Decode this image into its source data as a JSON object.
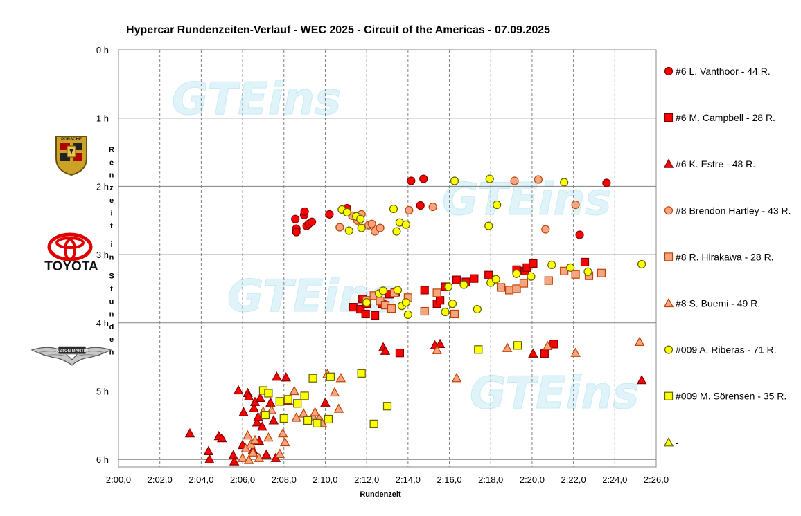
{
  "chart_data": {
    "type": "scatter",
    "title": "Hypercar Rundenzeiten-Verlauf - WEC 2025 - Circuit of the Americas - 07.09.2025",
    "xlabel": "Rundenzeit",
    "ylabel": "Renzeit in Stunden",
    "x_unit": "minutes",
    "xlim": [
      120,
      146
    ],
    "ylim": [
      0,
      6.1
    ],
    "y_reversed": true,
    "x_ticks": [
      "2:00,0",
      "2:02,0",
      "2:04,0",
      "2:06,0",
      "2:08,0",
      "2:10,0",
      "2:12,0",
      "2:14,0",
      "2:16,0",
      "2:18,0",
      "2:20,0",
      "2:22,0",
      "2:24,0",
      "2:26,0"
    ],
    "y_ticks": [
      "0 h",
      "1 h",
      "2 h",
      "3 h",
      "4 h",
      "5 h",
      "6 h"
    ],
    "grid": {
      "x": "dashed",
      "y": "solid"
    },
    "legend_position": "right",
    "watermark": "GTEins",
    "series": [
      {
        "name": "#6 L. Vanthoor - 44 R.",
        "marker": "circle",
        "fill": "#ff0000",
        "stroke": "#800000",
        "points": [
          [
            128.55,
            2.48
          ],
          [
            128.6,
            2.62
          ],
          [
            128.6,
            2.67
          ],
          [
            128.98,
            2.42
          ],
          [
            129.0,
            2.37
          ],
          [
            129.1,
            2.58
          ],
          [
            129.2,
            2.55
          ],
          [
            129.35,
            2.52
          ],
          [
            130.2,
            2.41
          ],
          [
            131.05,
            2.32
          ],
          [
            134.15,
            1.92
          ],
          [
            134.75,
            1.89
          ],
          [
            134.6,
            2.28
          ],
          [
            142.3,
            2.71
          ],
          [
            143.6,
            1.95
          ]
        ]
      },
      {
        "name": "#6 M. Campbell - 28 R.",
        "marker": "square",
        "fill": "#ff0000",
        "stroke": "#800000",
        "points": [
          [
            131.35,
            3.77
          ],
          [
            131.7,
            3.8
          ],
          [
            131.8,
            3.65
          ],
          [
            131.95,
            3.87
          ],
          [
            132.0,
            3.72
          ],
          [
            132.4,
            3.89
          ],
          [
            132.75,
            3.72
          ],
          [
            133.1,
            3.58
          ],
          [
            133.4,
            3.55
          ],
          [
            134.8,
            3.52
          ],
          [
            135.4,
            3.72
          ],
          [
            135.55,
            3.67
          ],
          [
            135.8,
            3.47
          ],
          [
            136.35,
            3.37
          ],
          [
            136.8,
            3.4
          ],
          [
            137.2,
            3.35
          ],
          [
            137.9,
            3.3
          ],
          [
            139.25,
            3.22
          ],
          [
            139.65,
            3.24
          ],
          [
            139.75,
            3.19
          ],
          [
            140.05,
            3.13
          ],
          [
            142.55,
            3.11
          ],
          [
            140.6,
            4.45
          ],
          [
            141.05,
            4.31
          ],
          [
            133.6,
            4.44
          ]
        ]
      },
      {
        "name": "#6 K. Estre - 48 R.",
        "marker": "triangle",
        "fill": "#ff0000",
        "stroke": "#800000",
        "points": [
          [
            123.45,
            5.62
          ],
          [
            124.35,
            5.88
          ],
          [
            124.4,
            6.0
          ],
          [
            124.85,
            5.66
          ],
          [
            125.0,
            5.69
          ],
          [
            125.55,
            5.94
          ],
          [
            125.6,
            6.03
          ],
          [
            125.8,
            4.99
          ],
          [
            126.0,
            5.79
          ],
          [
            126.05,
            5.31
          ],
          [
            126.25,
            5.03
          ],
          [
            126.3,
            5.08
          ],
          [
            126.5,
            5.86
          ],
          [
            126.55,
            5.25
          ],
          [
            126.6,
            5.16
          ],
          [
            126.7,
            5.46
          ],
          [
            126.75,
            5.38
          ],
          [
            126.8,
            5.73
          ],
          [
            126.85,
            5.1
          ],
          [
            126.95,
            5.52
          ],
          [
            127.15,
            5.93
          ],
          [
            127.35,
            5.17
          ],
          [
            127.5,
            5.43
          ],
          [
            127.6,
            5.98
          ],
          [
            127.65,
            4.79
          ],
          [
            128.1,
            4.8
          ],
          [
            128.2,
            5.14
          ],
          [
            130.0,
            5.17
          ],
          [
            132.8,
            4.36
          ],
          [
            132.9,
            4.41
          ],
          [
            135.3,
            4.33
          ],
          [
            135.55,
            4.31
          ],
          [
            140.05,
            4.45
          ],
          [
            145.3,
            4.84
          ]
        ]
      },
      {
        "name": "#8 Brendon Hartley - 43 R.",
        "marker": "circle",
        "fill": "#f4a582",
        "stroke": "#c04000",
        "points": [
          [
            130.7,
            2.6
          ],
          [
            131.3,
            2.43
          ],
          [
            131.55,
            2.5
          ],
          [
            131.75,
            2.41
          ],
          [
            132.1,
            2.57
          ],
          [
            132.25,
            2.55
          ],
          [
            132.4,
            2.66
          ],
          [
            132.65,
            2.61
          ],
          [
            134.05,
            2.35
          ],
          [
            135.2,
            2.3
          ],
          [
            139.15,
            1.92
          ],
          [
            140.3,
            1.9
          ],
          [
            140.65,
            2.63
          ],
          [
            142.1,
            2.27
          ]
        ]
      },
      {
        "name": "#8 R. Hirakawa - 28 R.",
        "marker": "square",
        "fill": "#f4a582",
        "stroke": "#c04000",
        "points": [
          [
            132.0,
            3.67
          ],
          [
            132.35,
            3.6
          ],
          [
            132.65,
            3.68
          ],
          [
            132.9,
            3.74
          ],
          [
            133.2,
            3.79
          ],
          [
            133.35,
            3.56
          ],
          [
            134.0,
            3.63
          ],
          [
            134.8,
            3.83
          ],
          [
            135.4,
            3.56
          ],
          [
            136.25,
            3.87
          ],
          [
            138.5,
            3.48
          ],
          [
            138.9,
            3.52
          ],
          [
            139.25,
            3.5
          ],
          [
            139.6,
            3.42
          ],
          [
            140.8,
            3.38
          ],
          [
            141.55,
            3.24
          ],
          [
            142.1,
            3.29
          ],
          [
            142.75,
            3.31
          ],
          [
            143.35,
            3.27
          ]
        ]
      },
      {
        "name": "#8 S. Buemi - 49 R.",
        "marker": "triangle",
        "fill": "#f4a582",
        "stroke": "#c04000",
        "points": [
          [
            126.0,
            5.98
          ],
          [
            126.15,
            5.84
          ],
          [
            126.25,
            5.65
          ],
          [
            126.3,
            6.01
          ],
          [
            126.4,
            5.78
          ],
          [
            126.5,
            5.9
          ],
          [
            126.6,
            5.72
          ],
          [
            126.8,
            5.98
          ],
          [
            127.0,
            5.3
          ],
          [
            127.25,
            5.68
          ],
          [
            127.4,
            5.28
          ],
          [
            127.8,
            5.92
          ],
          [
            127.95,
            5.62
          ],
          [
            128.05,
            5.75
          ],
          [
            128.5,
            5.0
          ],
          [
            128.6,
            5.39
          ],
          [
            128.95,
            5.33
          ],
          [
            129.4,
            5.37
          ],
          [
            129.5,
            5.31
          ],
          [
            129.7,
            5.4
          ],
          [
            129.85,
            5.47
          ],
          [
            130.1,
            4.75
          ],
          [
            130.45,
            5.02
          ],
          [
            130.65,
            5.26
          ],
          [
            130.75,
            4.81
          ],
          [
            136.35,
            4.81
          ],
          [
            138.8,
            4.37
          ],
          [
            140.75,
            4.34
          ],
          [
            142.1,
            4.44
          ],
          [
            145.2,
            4.28
          ],
          [
            135.4,
            4.4
          ]
        ]
      },
      {
        "name": "#009 A. Riberas - 71 R.",
        "marker": "circle",
        "fill": "#ffff00",
        "stroke": "#606000",
        "points": [
          [
            130.8,
            2.34
          ],
          [
            131.05,
            2.38
          ],
          [
            131.15,
            2.65
          ],
          [
            131.5,
            2.44
          ],
          [
            131.7,
            2.48
          ],
          [
            131.75,
            2.61
          ],
          [
            132.0,
            3.7
          ],
          [
            132.6,
            3.57
          ],
          [
            132.8,
            3.53
          ],
          [
            133.3,
            2.33
          ],
          [
            133.45,
            2.66
          ],
          [
            133.6,
            2.53
          ],
          [
            133.7,
            3.75
          ],
          [
            133.9,
            3.7
          ],
          [
            134.0,
            3.88
          ],
          [
            133.5,
            3.52
          ],
          [
            133.9,
            2.56
          ],
          [
            136.25,
            1.92
          ],
          [
            135.8,
            3.84
          ],
          [
            135.95,
            3.47
          ],
          [
            136.15,
            3.72
          ],
          [
            136.7,
            3.44
          ],
          [
            137.35,
            3.8
          ],
          [
            138.0,
            3.41
          ],
          [
            138.25,
            3.36
          ],
          [
            138.3,
            2.27
          ],
          [
            137.9,
            2.58
          ],
          [
            137.95,
            1.89
          ],
          [
            139.25,
            3.28
          ],
          [
            139.95,
            3.32
          ],
          [
            140.95,
            3.15
          ],
          [
            141.55,
            1.94
          ],
          [
            141.85,
            3.19
          ],
          [
            142.7,
            3.25
          ],
          [
            145.3,
            3.14
          ]
        ]
      },
      {
        "name": "#009 M. Sörensen - 35 R.",
        "marker": "square",
        "fill": "#ffff00",
        "stroke": "#606000",
        "points": [
          [
            127.0,
            4.99
          ],
          [
            127.25,
            5.03
          ],
          [
            127.8,
            5.15
          ],
          [
            128.0,
            5.4
          ],
          [
            128.2,
            5.12
          ],
          [
            128.65,
            5.18
          ],
          [
            129.0,
            5.07
          ],
          [
            129.15,
            5.43
          ],
          [
            129.4,
            4.81
          ],
          [
            129.6,
            5.47
          ],
          [
            130.25,
            4.79
          ],
          [
            130.15,
            5.41
          ],
          [
            131.75,
            4.74
          ],
          [
            132.35,
            5.48
          ],
          [
            133.0,
            5.22
          ],
          [
            137.4,
            4.39
          ],
          [
            139.3,
            4.33
          ],
          [
            127.1,
            5.35
          ]
        ]
      },
      {
        "name": "-",
        "marker": "triangle",
        "fill": "#ffff00",
        "stroke": "#606000",
        "points": []
      }
    ]
  },
  "logos": {
    "porsche": "PORSCHE",
    "toyota": "TOYOTA",
    "aston": "ASTON MARTIN"
  }
}
